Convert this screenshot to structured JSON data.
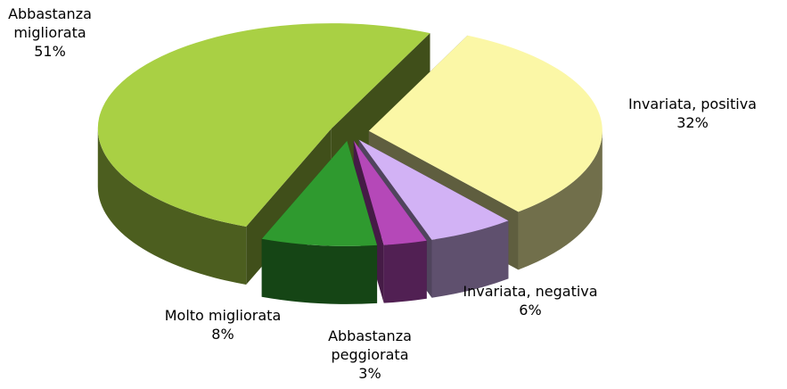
{
  "chart_data": {
    "type": "pie",
    "categories": [
      "Invariata, positiva",
      "Invariata, negativa",
      "Abbastanza peggiorata",
      "Molto migliorata",
      "Abbastanza migliorata"
    ],
    "values": [
      32,
      6,
      3,
      8,
      51
    ],
    "value_labels": [
      "32%",
      "6%",
      "3%",
      "8%",
      "51%"
    ],
    "colors": [
      "#fbf7a6",
      "#d2b2f5",
      "#b548b8",
      "#2f9a2f",
      "#a9d044"
    ]
  }
}
